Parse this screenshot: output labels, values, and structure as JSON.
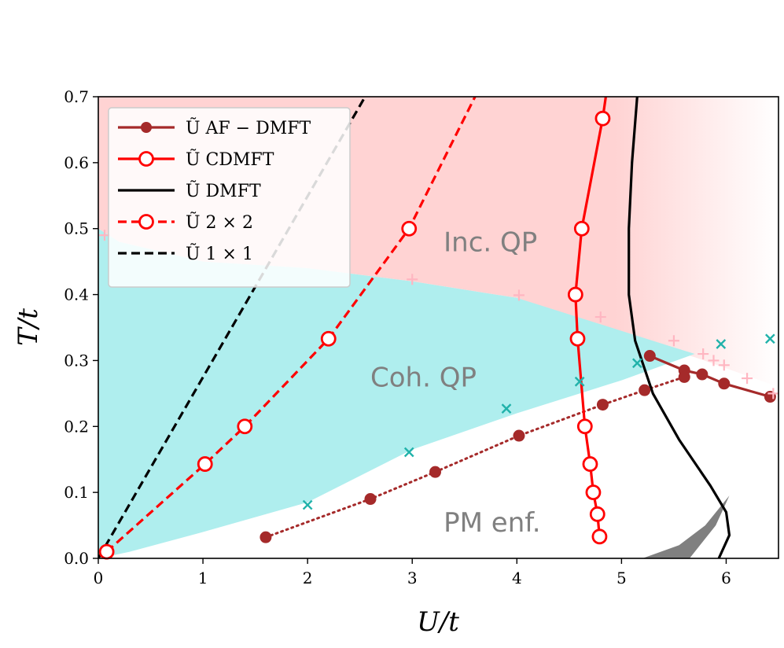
{
  "chart_data": {
    "type": "line",
    "title": "",
    "xlabel": "U/t",
    "ylabel": "T/t",
    "xlim": [
      0,
      6.5
    ],
    "ylim": [
      0,
      0.7
    ],
    "xticks": [
      0,
      1,
      2,
      3,
      4,
      5,
      6
    ],
    "yticks": [
      0.0,
      0.1,
      0.2,
      0.3,
      0.4,
      0.5,
      0.6,
      0.7
    ],
    "xtick_labels": [
      "0",
      "1",
      "2",
      "3",
      "4",
      "5",
      "6"
    ],
    "ytick_labels": [
      "0.0",
      "0.1",
      "0.2",
      "0.3",
      "0.4",
      "0.5",
      "0.6",
      "0.7"
    ],
    "grid": false,
    "legend_position": "top-left",
    "colors": {
      "af_dmft": "#a52a2a",
      "cdmft": "#ff0000",
      "dmft": "#000000",
      "coh_region": "#afeeee",
      "inc_region": "#ffd3d3",
      "pink_markers": "#ffb6c1",
      "teal_markers": "#20b2aa",
      "gray_region": "#808080"
    },
    "regions": [
      {
        "name": "Inc. QP",
        "label": "Inc. QP",
        "label_at": [
          3.3,
          0.48
        ],
        "polygon": [
          [
            0,
            0.7
          ],
          [
            6.5,
            0.7
          ],
          [
            6.5,
            0.26
          ],
          [
            5.7,
            0.305
          ],
          [
            5.0,
            0.34
          ],
          [
            4.0,
            0.395
          ],
          [
            3.0,
            0.42
          ],
          [
            2.0,
            0.44
          ],
          [
            1.0,
            0.45
          ],
          [
            0.2,
            0.48
          ],
          [
            0,
            0.5
          ]
        ]
      },
      {
        "name": "Coh. QP",
        "label": "Coh. QP",
        "label_at": [
          2.6,
          0.275
        ],
        "polygon": [
          [
            0,
            0.5
          ],
          [
            0.2,
            0.48
          ],
          [
            1.0,
            0.45
          ],
          [
            2.0,
            0.44
          ],
          [
            3.0,
            0.42
          ],
          [
            4.0,
            0.395
          ],
          [
            5.0,
            0.345
          ],
          [
            5.5,
            0.32
          ],
          [
            5.7,
            0.31
          ],
          [
            5.0,
            0.27
          ],
          [
            4.0,
            0.22
          ],
          [
            3.0,
            0.165
          ],
          [
            2.0,
            0.085
          ],
          [
            1.0,
            0.04
          ],
          [
            0.3,
            0.01
          ],
          [
            0.0,
            0.0
          ]
        ]
      },
      {
        "name": "PM enf.",
        "label": "PM enf.",
        "label_at": [
          3.3,
          0.055
        ],
        "polygon": [
          [
            5.2,
            0.0
          ],
          [
            5.55,
            0.02
          ],
          [
            5.8,
            0.05
          ],
          [
            6.03,
            0.095
          ],
          [
            5.9,
            0.05
          ],
          [
            5.65,
            0.0
          ]
        ]
      }
    ],
    "series": [
      {
        "name": "Ũ AF-DMFT",
        "legend_label": "Ũ AF − DMFT",
        "color": "#a52a2a",
        "linestyle": "solid",
        "marker": "filled-circle",
        "x": [
          5.27,
          5.6,
          5.77,
          5.98,
          6.42
        ],
        "y": [
          0.307,
          0.285,
          0.279,
          0.265,
          0.245
        ]
      },
      {
        "name": "AF-DMFT dotted",
        "legend_label": "",
        "color": "#a52a2a",
        "linestyle": "dotted",
        "marker": "filled-circle",
        "x": [
          1.6,
          2.6,
          3.22,
          4.02,
          4.82,
          5.22,
          5.6
        ],
        "y": [
          0.032,
          0.09,
          0.131,
          0.186,
          0.233,
          0.255,
          0.275
        ]
      },
      {
        "name": "Ũ CDMFT",
        "legend_label": "Ũ CDMFT",
        "color": "#ff0000",
        "linestyle": "solid",
        "marker": "open-circle",
        "x": [
          4.85,
          4.82,
          4.62,
          4.56,
          4.58,
          4.65,
          4.7,
          4.73,
          4.77,
          4.79
        ],
        "y": [
          0.7,
          0.667,
          0.5,
          0.4,
          0.333,
          0.2,
          0.143,
          0.1,
          0.067,
          0.033
        ]
      },
      {
        "name": "Ũ DMFT",
        "legend_label": "Ũ DMFT",
        "color": "#000000",
        "linestyle": "solid",
        "marker": "none",
        "x": [
          5.15,
          5.1,
          5.07,
          5.07,
          5.13,
          5.3,
          5.55,
          5.85,
          6.0,
          6.03,
          5.93
        ],
        "y": [
          0.7,
          0.6,
          0.5,
          0.4,
          0.33,
          0.25,
          0.18,
          0.11,
          0.07,
          0.035,
          0.0
        ]
      },
      {
        "name": "Ũ 2x2",
        "legend_label": "Ũ 2 × 2",
        "color": "#ff0000",
        "linestyle": "dashed",
        "marker": "open-circle",
        "marker_x": [
          0.08,
          1.02,
          1.4,
          2.2,
          2.97
        ],
        "marker_y": [
          0.01,
          0.143,
          0.2,
          0.333,
          0.5
        ],
        "x": [
          0.08,
          1.02,
          1.4,
          2.2,
          2.97,
          3.6
        ],
        "y": [
          0.01,
          0.143,
          0.2,
          0.333,
          0.5,
          0.7
        ]
      },
      {
        "name": "Ũ 1x1",
        "legend_label": "Ũ 1 × 1",
        "color": "#000000",
        "linestyle": "dashed",
        "marker": "none",
        "x": [
          0.0,
          2.55
        ],
        "y": [
          0.0,
          0.7
        ]
      },
      {
        "name": "pink crosses",
        "legend_label": "",
        "color": "#ffb6c1",
        "linestyle": "none",
        "marker": "plus",
        "x": [
          0.06,
          3.0,
          4.02,
          4.8,
          5.5,
          5.78,
          5.88,
          5.98,
          6.2,
          6.45
        ],
        "y": [
          0.49,
          0.423,
          0.399,
          0.366,
          0.33,
          0.31,
          0.3,
          0.293,
          0.273,
          0.25
        ]
      },
      {
        "name": "teal x markers",
        "legend_label": "",
        "color": "#20b2aa",
        "linestyle": "none",
        "marker": "x",
        "x": [
          2.0,
          2.97,
          3.9,
          4.6,
          5.15,
          5.95,
          6.42
        ],
        "y": [
          0.081,
          0.161,
          0.227,
          0.268,
          0.296,
          0.325,
          0.333
        ]
      }
    ]
  }
}
